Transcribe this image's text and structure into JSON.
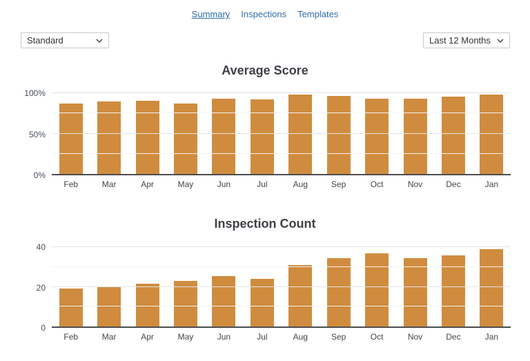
{
  "nav": {
    "tabs": [
      {
        "label": "Summary",
        "active": true
      },
      {
        "label": "Inspections",
        "active": false
      },
      {
        "label": "Templates",
        "active": false
      }
    ]
  },
  "controls": {
    "template_select": {
      "value": "Standard"
    },
    "range_select": {
      "value": "Last 12 Months"
    }
  },
  "colors": {
    "bar": "#d08c3e",
    "link": "#2e6da4",
    "axis_text": "#47505b",
    "grid_major": "#e3e3e3",
    "grid_minor": "#f3f3f3",
    "baseline": "#4d4d4d",
    "title": "#3e4146"
  },
  "chart_data": [
    {
      "type": "bar",
      "title": "Average Score",
      "categories": [
        "Feb",
        "Mar",
        "Apr",
        "May",
        "Jun",
        "Jul",
        "Aug",
        "Sep",
        "Oct",
        "Nov",
        "Dec",
        "Jan"
      ],
      "values": [
        87,
        90,
        91,
        87,
        93,
        92,
        98,
        97,
        93,
        93,
        96,
        98
      ],
      "xlabel": "",
      "ylabel": "",
      "ylim": [
        0,
        100
      ],
      "yticks": [
        0,
        50,
        100
      ],
      "ytick_labels": [
        "0%",
        "50%",
        "100%"
      ],
      "minor_gridlines": [
        25,
        75
      ],
      "grid": true,
      "legend": "none"
    },
    {
      "type": "bar",
      "title": "Inspection Count",
      "categories": [
        "Feb",
        "Mar",
        "Apr",
        "May",
        "Jun",
        "Jul",
        "Aug",
        "Sep",
        "Oct",
        "Nov",
        "Dec",
        "Jan"
      ],
      "values": [
        19,
        20,
        21.5,
        23,
        25.5,
        24,
        31,
        34.5,
        37,
        34.5,
        36,
        39
      ],
      "xlabel": "",
      "ylabel": "",
      "ylim": [
        0,
        40
      ],
      "yticks": [
        0,
        20,
        40
      ],
      "ytick_labels": [
        "0",
        "20",
        "40"
      ],
      "minor_gridlines": [
        10,
        30
      ],
      "grid": true,
      "legend": "none"
    }
  ]
}
